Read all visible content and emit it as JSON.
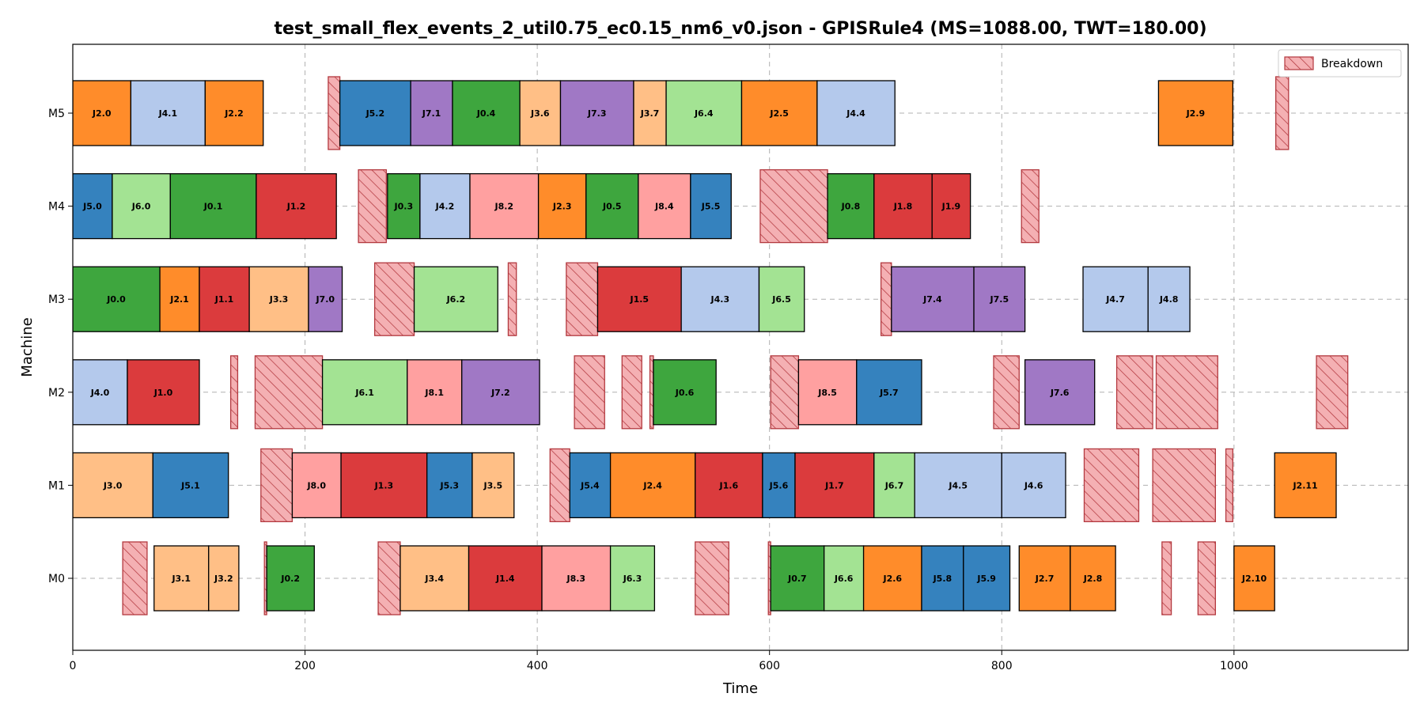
{
  "chart_data": {
    "type": "gantt",
    "title": "test_small_flex_events_2_util0.75_ec0.15_nm6_v0.json - GPISRule4 (MS=1088.00, TWT=180.00)",
    "xlabel": "Time",
    "ylabel": "Machine",
    "xlim": [
      0,
      1150
    ],
    "xticks": [
      0,
      200,
      400,
      600,
      800,
      1000
    ],
    "machines": [
      "M0",
      "M1",
      "M2",
      "M3",
      "M4",
      "M5"
    ],
    "grid": true,
    "legend": {
      "placement": "top-right",
      "entries": [
        "Breakdown"
      ]
    },
    "job_colors": {
      "J0": "#3ea63e",
      "J1": "#db3b3d",
      "J2": "#ff8c2a",
      "J3": "#ffbf86",
      "J4": "#b4c9ec",
      "J5": "#3582be",
      "J6": "#a3e393",
      "J7": "#a078c5",
      "J8": "#ffa0a0"
    },
    "breakdown_color": "#f4b0b3",
    "breakdown_edge": "#b3393f",
    "operations": [
      {
        "machine": "M5",
        "label": "J2.0",
        "job": "J2",
        "start": 0,
        "end": 50
      },
      {
        "machine": "M5",
        "label": "J4.1",
        "job": "J4",
        "start": 50,
        "end": 114
      },
      {
        "machine": "M5",
        "label": "J2.2",
        "job": "J2",
        "start": 114,
        "end": 164
      },
      {
        "machine": "M5",
        "label": "J5.2",
        "job": "J5",
        "start": 230,
        "end": 291
      },
      {
        "machine": "M5",
        "label": "J7.1",
        "job": "J7",
        "start": 291,
        "end": 327
      },
      {
        "machine": "M5",
        "label": "J0.4",
        "job": "J0",
        "start": 327,
        "end": 385
      },
      {
        "machine": "M5",
        "label": "J3.6",
        "job": "J3",
        "start": 385,
        "end": 420
      },
      {
        "machine": "M5",
        "label": "J7.3",
        "job": "J7",
        "start": 420,
        "end": 483
      },
      {
        "machine": "M5",
        "label": "J3.7",
        "job": "J3",
        "start": 483,
        "end": 511
      },
      {
        "machine": "M5",
        "label": "J6.4",
        "job": "J6",
        "start": 511,
        "end": 576
      },
      {
        "machine": "M5",
        "label": "J2.5",
        "job": "J2",
        "start": 576,
        "end": 641
      },
      {
        "machine": "M5",
        "label": "J4.4",
        "job": "J4",
        "start": 641,
        "end": 708
      },
      {
        "machine": "M5",
        "label": "J2.9",
        "job": "J2",
        "start": 935,
        "end": 999
      },
      {
        "machine": "M4",
        "label": "J5.0",
        "job": "J5",
        "start": 0,
        "end": 34
      },
      {
        "machine": "M4",
        "label": "J6.0",
        "job": "J6",
        "start": 34,
        "end": 84
      },
      {
        "machine": "M4",
        "label": "J0.1",
        "job": "J0",
        "start": 84,
        "end": 158
      },
      {
        "machine": "M4",
        "label": "J1.2",
        "job": "J1",
        "start": 158,
        "end": 227
      },
      {
        "machine": "M4",
        "label": "J0.3",
        "job": "J0",
        "start": 271,
        "end": 299
      },
      {
        "machine": "M4",
        "label": "J4.2",
        "job": "J4",
        "start": 299,
        "end": 342
      },
      {
        "machine": "M4",
        "label": "J8.2",
        "job": "J8",
        "start": 342,
        "end": 401
      },
      {
        "machine": "M4",
        "label": "J2.3",
        "job": "J2",
        "start": 401,
        "end": 442
      },
      {
        "machine": "M4",
        "label": "J0.5",
        "job": "J0",
        "start": 442,
        "end": 487
      },
      {
        "machine": "M4",
        "label": "J8.4",
        "job": "J8",
        "start": 487,
        "end": 532
      },
      {
        "machine": "M4",
        "label": "J5.5",
        "job": "J5",
        "start": 532,
        "end": 567
      },
      {
        "machine": "M4",
        "label": "J0.8",
        "job": "J0",
        "start": 650,
        "end": 690
      },
      {
        "machine": "M4",
        "label": "J1.8",
        "job": "J1",
        "start": 690,
        "end": 740
      },
      {
        "machine": "M4",
        "label": "J1.9",
        "job": "J1",
        "start": 740,
        "end": 773
      },
      {
        "machine": "M3",
        "label": "J0.0",
        "job": "J0",
        "start": 0,
        "end": 75
      },
      {
        "machine": "M3",
        "label": "J2.1",
        "job": "J2",
        "start": 75,
        "end": 109
      },
      {
        "machine": "M3",
        "label": "J1.1",
        "job": "J1",
        "start": 109,
        "end": 152
      },
      {
        "machine": "M3",
        "label": "J3.3",
        "job": "J3",
        "start": 152,
        "end": 203
      },
      {
        "machine": "M3",
        "label": "J7.0",
        "job": "J7",
        "start": 203,
        "end": 232
      },
      {
        "machine": "M3",
        "label": "J6.2",
        "job": "J6",
        "start": 294,
        "end": 366
      },
      {
        "machine": "M3",
        "label": "J1.5",
        "job": "J1",
        "start": 452,
        "end": 524
      },
      {
        "machine": "M3",
        "label": "J4.3",
        "job": "J4",
        "start": 524,
        "end": 591
      },
      {
        "machine": "M3",
        "label": "J6.5",
        "job": "J6",
        "start": 591,
        "end": 630
      },
      {
        "machine": "M3",
        "label": "J7.4",
        "job": "J7",
        "start": 705,
        "end": 776
      },
      {
        "machine": "M3",
        "label": "J7.5",
        "job": "J7",
        "start": 776,
        "end": 820
      },
      {
        "machine": "M3",
        "label": "J4.7",
        "job": "J4",
        "start": 870,
        "end": 926
      },
      {
        "machine": "M3",
        "label": "J4.8",
        "job": "J4",
        "start": 926,
        "end": 962
      },
      {
        "machine": "M2",
        "label": "J4.0",
        "job": "J4",
        "start": 0,
        "end": 47
      },
      {
        "machine": "M2",
        "label": "J1.0",
        "job": "J1",
        "start": 47,
        "end": 109
      },
      {
        "machine": "M2",
        "label": "J6.1",
        "job": "J6",
        "start": 215,
        "end": 288
      },
      {
        "machine": "M2",
        "label": "J8.1",
        "job": "J8",
        "start": 288,
        "end": 335
      },
      {
        "machine": "M2",
        "label": "J7.2",
        "job": "J7",
        "start": 335,
        "end": 402
      },
      {
        "machine": "M2",
        "label": "J0.6",
        "job": "J0",
        "start": 500,
        "end": 554
      },
      {
        "machine": "M2",
        "label": "J8.5",
        "job": "J8",
        "start": 625,
        "end": 675
      },
      {
        "machine": "M2",
        "label": "J5.7",
        "job": "J5",
        "start": 675,
        "end": 731
      },
      {
        "machine": "M2",
        "label": "J7.6",
        "job": "J7",
        "start": 820,
        "end": 880
      },
      {
        "machine": "M1",
        "label": "J3.0",
        "job": "J3",
        "start": 0,
        "end": 69
      },
      {
        "machine": "M1",
        "label": "J5.1",
        "job": "J5",
        "start": 69,
        "end": 134
      },
      {
        "machine": "M1",
        "label": "J8.0",
        "job": "J8",
        "start": 189,
        "end": 231
      },
      {
        "machine": "M1",
        "label": "J1.3",
        "job": "J1",
        "start": 231,
        "end": 305
      },
      {
        "machine": "M1",
        "label": "J5.3",
        "job": "J5",
        "start": 305,
        "end": 344
      },
      {
        "machine": "M1",
        "label": "J3.5",
        "job": "J3",
        "start": 344,
        "end": 380
      },
      {
        "machine": "M1",
        "label": "J5.4",
        "job": "J5",
        "start": 428,
        "end": 463
      },
      {
        "machine": "M1",
        "label": "J2.4",
        "job": "J2",
        "start": 463,
        "end": 536
      },
      {
        "machine": "M1",
        "label": "J1.6",
        "job": "J1",
        "start": 536,
        "end": 594
      },
      {
        "machine": "M1",
        "label": "J5.6",
        "job": "J5",
        "start": 594,
        "end": 622
      },
      {
        "machine": "M1",
        "label": "J1.7",
        "job": "J1",
        "start": 622,
        "end": 690
      },
      {
        "machine": "M1",
        "label": "J6.7",
        "job": "J6",
        "start": 690,
        "end": 725
      },
      {
        "machine": "M1",
        "label": "J4.5",
        "job": "J4",
        "start": 725,
        "end": 800
      },
      {
        "machine": "M1",
        "label": "J4.6",
        "job": "J4",
        "start": 800,
        "end": 855
      },
      {
        "machine": "M1",
        "label": "J2.11",
        "job": "J2",
        "start": 1035,
        "end": 1088
      },
      {
        "machine": "M0",
        "label": "J3.1",
        "job": "J3",
        "start": 70,
        "end": 117
      },
      {
        "machine": "M0",
        "label": "J3.2",
        "job": "J3",
        "start": 117,
        "end": 143
      },
      {
        "machine": "M0",
        "label": "J0.2",
        "job": "J0",
        "start": 167,
        "end": 208
      },
      {
        "machine": "M0",
        "label": "J3.4",
        "job": "J3",
        "start": 282,
        "end": 341
      },
      {
        "machine": "M0",
        "label": "J1.4",
        "job": "J1",
        "start": 341,
        "end": 404
      },
      {
        "machine": "M0",
        "label": "J8.3",
        "job": "J8",
        "start": 404,
        "end": 463
      },
      {
        "machine": "M0",
        "label": "J6.3",
        "job": "J6",
        "start": 463,
        "end": 501
      },
      {
        "machine": "M0",
        "label": "J0.7",
        "job": "J0",
        "start": 601,
        "end": 647
      },
      {
        "machine": "M0",
        "label": "J6.6",
        "job": "J6",
        "start": 647,
        "end": 681
      },
      {
        "machine": "M0",
        "label": "J2.6",
        "job": "J2",
        "start": 681,
        "end": 731
      },
      {
        "machine": "M0",
        "label": "J5.8",
        "job": "J5",
        "start": 731,
        "end": 767
      },
      {
        "machine": "M0",
        "label": "J5.9",
        "job": "J5",
        "start": 767,
        "end": 807
      },
      {
        "machine": "M0",
        "label": "J2.7",
        "job": "J2",
        "start": 815,
        "end": 859
      },
      {
        "machine": "M0",
        "label": "J2.8",
        "job": "J2",
        "start": 859,
        "end": 898
      },
      {
        "machine": "M0",
        "label": "J2.10",
        "job": "J2",
        "start": 1000,
        "end": 1035
      }
    ],
    "breakdowns": [
      {
        "machine": "M5",
        "start": 220,
        "end": 230
      },
      {
        "machine": "M5",
        "start": 1036,
        "end": 1047
      },
      {
        "machine": "M4",
        "start": 246,
        "end": 270
      },
      {
        "machine": "M4",
        "start": 592,
        "end": 650
      },
      {
        "machine": "M4",
        "start": 817,
        "end": 832
      },
      {
        "machine": "M3",
        "start": 260,
        "end": 294
      },
      {
        "machine": "M3",
        "start": 375,
        "end": 382
      },
      {
        "machine": "M3",
        "start": 425,
        "end": 452
      },
      {
        "machine": "M3",
        "start": 696,
        "end": 705
      },
      {
        "machine": "M2",
        "start": 136,
        "end": 142
      },
      {
        "machine": "M2",
        "start": 157,
        "end": 215
      },
      {
        "machine": "M2",
        "start": 432,
        "end": 458
      },
      {
        "machine": "M2",
        "start": 473,
        "end": 490
      },
      {
        "machine": "M2",
        "start": 497,
        "end": 500
      },
      {
        "machine": "M2",
        "start": 601,
        "end": 625
      },
      {
        "machine": "M2",
        "start": 793,
        "end": 815
      },
      {
        "machine": "M2",
        "start": 899,
        "end": 930
      },
      {
        "machine": "M2",
        "start": 933,
        "end": 986
      },
      {
        "machine": "M2",
        "start": 1071,
        "end": 1098
      },
      {
        "machine": "M1",
        "start": 162,
        "end": 189
      },
      {
        "machine": "M1",
        "start": 411,
        "end": 428
      },
      {
        "machine": "M1",
        "start": 871,
        "end": 918
      },
      {
        "machine": "M1",
        "start": 930,
        "end": 984
      },
      {
        "machine": "M1",
        "start": 993,
        "end": 999
      },
      {
        "machine": "M0",
        "start": 43,
        "end": 64
      },
      {
        "machine": "M0",
        "start": 165,
        "end": 167
      },
      {
        "machine": "M0",
        "start": 263,
        "end": 282
      },
      {
        "machine": "M0",
        "start": 536,
        "end": 565
      },
      {
        "machine": "M0",
        "start": 599,
        "end": 601
      },
      {
        "machine": "M0",
        "start": 938,
        "end": 946
      },
      {
        "machine": "M0",
        "start": 969,
        "end": 984
      }
    ]
  }
}
